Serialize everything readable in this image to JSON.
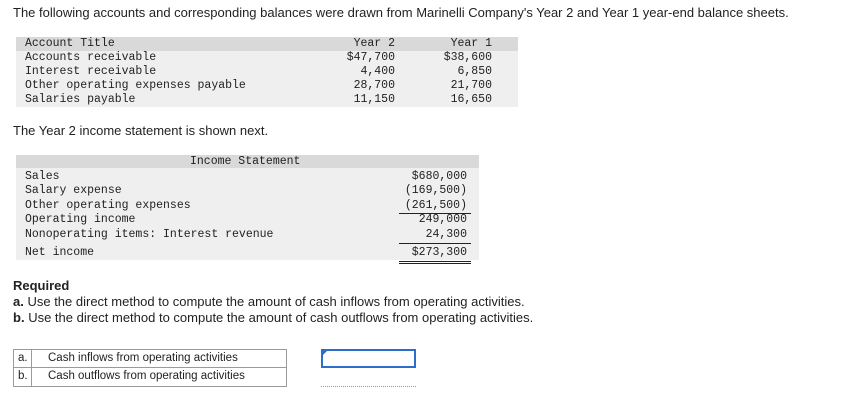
{
  "intro": "The following accounts and corresponding balances were drawn from Marinelli Company's Year 2 and Year 1 year-end balance sheets.",
  "balance_sheet": {
    "headers": {
      "title": "Account Title",
      "y2": "Year 2",
      "y1": "Year 1"
    },
    "rows": [
      {
        "title": "Accounts receivable",
        "y2": "$47,700",
        "y1": "$38,600"
      },
      {
        "title": "Interest receivable",
        "y2": "4,400",
        "y1": "6,850"
      },
      {
        "title": "Other operating expenses payable",
        "y2": "28,700",
        "y1": "21,700"
      },
      {
        "title": "Salaries payable",
        "y2": "11,150",
        "y1": "16,650"
      }
    ]
  },
  "income_intro": "The Year 2 income statement is shown next.",
  "income_statement": {
    "heading": "Income Statement",
    "rows": [
      {
        "label": "Sales",
        "amount": "$680,000"
      },
      {
        "label": "Salary expense",
        "amount": "(169,500)"
      },
      {
        "label": "Other operating expenses",
        "amount": "(261,500)"
      },
      {
        "label": "Operating income",
        "amount": "249,000"
      },
      {
        "label": "Nonoperating items: Interest revenue",
        "amount": "24,300"
      },
      {
        "label": "Net income",
        "amount": "$273,300"
      }
    ]
  },
  "required": {
    "title": "Required",
    "a_letter": "a.",
    "a_text": "Use the direct method to compute the amount of cash inflows from operating activities.",
    "b_letter": "b.",
    "b_text": "Use the direct method to compute the amount of cash outflows from operating activities."
  },
  "answers": [
    {
      "letter": "a.",
      "label": "Cash inflows from operating activities",
      "value": ""
    },
    {
      "letter": "b.",
      "label": "Cash outflows from operating activities",
      "value": ""
    }
  ],
  "colors": {
    "header_bg": "#d9d9d9",
    "row_shade": "#efefef",
    "focus": "#2a6fc9"
  }
}
